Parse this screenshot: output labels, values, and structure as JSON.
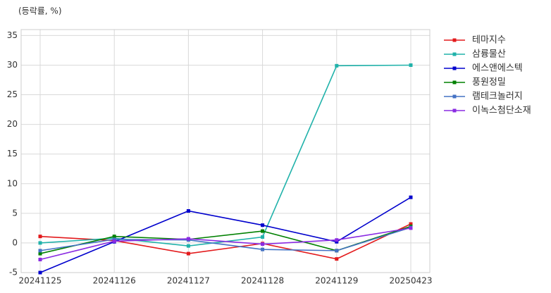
{
  "chart_data": {
    "type": "line",
    "y_label": "(등락률, %)",
    "categories": [
      "20241125",
      "20241126",
      "20241127",
      "20241128",
      "20241129",
      "20250423"
    ],
    "series": [
      {
        "name": "테마지수",
        "color": "#e31a1c",
        "values": [
          1.1,
          0.4,
          -1.8,
          -0.1,
          -2.7,
          3.2
        ]
      },
      {
        "name": "삼륭물산",
        "color": "#20b2aa",
        "values": [
          0.0,
          0.8,
          -0.5,
          1.0,
          29.9,
          30.0
        ]
      },
      {
        "name": "에스앤에스텍",
        "color": "#0000cd",
        "values": [
          -5.0,
          0.2,
          5.4,
          3.0,
          0.2,
          7.7
        ]
      },
      {
        "name": "풍원정밀",
        "color": "#008000",
        "values": [
          -1.8,
          1.1,
          0.6,
          2.0,
          -1.3,
          2.8
        ]
      },
      {
        "name": "램테크놀러지",
        "color": "#4472c4",
        "values": [
          -1.3,
          0.6,
          0.5,
          -1.1,
          -1.3,
          2.6
        ]
      },
      {
        "name": "이녹스첨단소재",
        "color": "#8a2be2",
        "values": [
          -2.8,
          0.3,
          0.7,
          -0.2,
          0.5,
          2.5
        ]
      }
    ],
    "ylim": [
      -5,
      36
    ],
    "yticks": [
      -5,
      0,
      5,
      10,
      15,
      20,
      25,
      30,
      35
    ],
    "grid": true,
    "legend": "right"
  }
}
